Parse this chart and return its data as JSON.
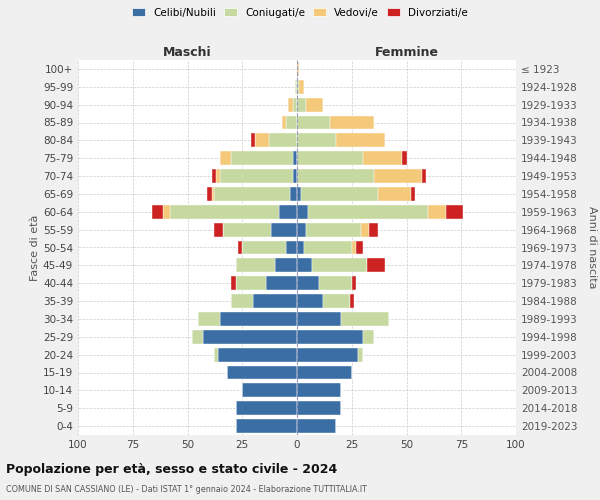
{
  "age_groups": [
    "0-4",
    "5-9",
    "10-14",
    "15-19",
    "20-24",
    "25-29",
    "30-34",
    "35-39",
    "40-44",
    "45-49",
    "50-54",
    "55-59",
    "60-64",
    "65-69",
    "70-74",
    "75-79",
    "80-84",
    "85-89",
    "90-94",
    "95-99",
    "100+"
  ],
  "birth_years": [
    "2019-2023",
    "2014-2018",
    "2009-2013",
    "2004-2008",
    "1999-2003",
    "1994-1998",
    "1989-1993",
    "1984-1988",
    "1979-1983",
    "1974-1978",
    "1969-1973",
    "1964-1968",
    "1959-1963",
    "1954-1958",
    "1949-1953",
    "1944-1948",
    "1939-1943",
    "1934-1938",
    "1929-1933",
    "1924-1928",
    "≤ 1923"
  ],
  "male": {
    "celibi": [
      28,
      28,
      25,
      32,
      36,
      43,
      35,
      20,
      14,
      10,
      5,
      12,
      8,
      3,
      2,
      2,
      0,
      0,
      0,
      0,
      0
    ],
    "coniugati": [
      0,
      0,
      0,
      0,
      2,
      5,
      10,
      10,
      14,
      18,
      20,
      22,
      50,
      35,
      33,
      28,
      13,
      5,
      2,
      1,
      0
    ],
    "vedovi": [
      0,
      0,
      0,
      0,
      0,
      0,
      0,
      0,
      0,
      0,
      0,
      0,
      3,
      1,
      2,
      5,
      6,
      2,
      2,
      0,
      0
    ],
    "divorziati": [
      0,
      0,
      0,
      0,
      0,
      0,
      0,
      0,
      2,
      0,
      2,
      4,
      5,
      2,
      2,
      0,
      2,
      0,
      0,
      0,
      0
    ]
  },
  "female": {
    "nubili": [
      18,
      20,
      20,
      25,
      28,
      30,
      20,
      12,
      10,
      7,
      3,
      4,
      5,
      2,
      0,
      0,
      0,
      0,
      0,
      0,
      0
    ],
    "coniugate": [
      0,
      0,
      0,
      0,
      2,
      5,
      22,
      12,
      15,
      25,
      22,
      25,
      55,
      35,
      35,
      30,
      18,
      15,
      4,
      1,
      0
    ],
    "vedove": [
      0,
      0,
      0,
      0,
      0,
      0,
      0,
      0,
      0,
      0,
      2,
      4,
      8,
      15,
      22,
      18,
      22,
      20,
      8,
      2,
      1
    ],
    "divorziate": [
      0,
      0,
      0,
      0,
      0,
      0,
      0,
      2,
      2,
      8,
      3,
      4,
      8,
      2,
      2,
      2,
      0,
      0,
      0,
      0,
      0
    ]
  },
  "colors": {
    "celibi": "#3a6ea5",
    "coniugati": "#c5d9a0",
    "vedovi": "#f5c97a",
    "divorziati": "#cc2222"
  },
  "xlim": 100,
  "xtick_step": 25,
  "title": "Popolazione per età, sesso e stato civile - 2024",
  "subtitle": "COMUNE DI SAN CASSIANO (LE) - Dati ISTAT 1° gennaio 2024 - Elaborazione TUTTITALIA.IT",
  "ylabel_left": "Fasce di età",
  "ylabel_right": "Anni di nascita",
  "xlabel_left": "Maschi",
  "xlabel_right": "Femmine",
  "bg_color": "#f0f0f0",
  "plot_bg_color": "#ffffff",
  "grid_color": "#cccccc",
  "legend_labels": [
    "Celibi/Nubili",
    "Coniugati/e",
    "Vedovi/e",
    "Divorziati/e"
  ]
}
